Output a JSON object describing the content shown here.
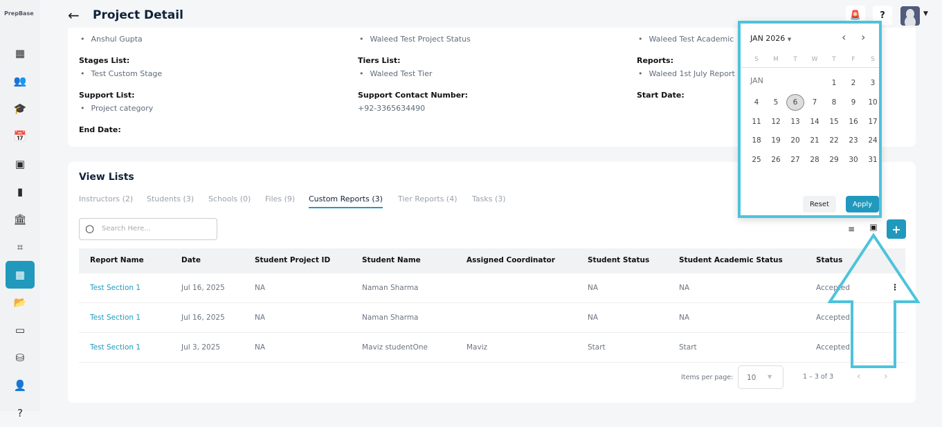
{
  "app": {
    "logo": "PrepBase"
  },
  "header": {
    "title": "Project Detail"
  },
  "sidebar": {
    "icons": [
      "dashboard-icon",
      "users-icon",
      "graduation-cap-icon",
      "calendar-icon",
      "inbox-icon",
      "book-icon",
      "bank-icon",
      "workflow-icon",
      "custom-reports-icon",
      "folder-icon",
      "credit-card-icon",
      "database-settings-icon",
      "user-chat-icon",
      "help-icon"
    ],
    "active_index": 8
  },
  "details": {
    "col1": [
      {
        "type": "value",
        "text": "Anshul Gupta"
      },
      {
        "type": "label",
        "text": "Stages List:"
      },
      {
        "type": "value",
        "text": "Test Custom Stage"
      },
      {
        "type": "label",
        "text": "Support List:"
      },
      {
        "type": "value",
        "text": "Project category"
      },
      {
        "type": "label",
        "text": "End Date:"
      }
    ],
    "col2": [
      {
        "type": "value",
        "text": "Waleed Test Project Status"
      },
      {
        "type": "label",
        "text": "Tiers List:"
      },
      {
        "type": "value",
        "text": "Waleed Test Tier"
      },
      {
        "type": "label",
        "text": "Support Contact Number:"
      },
      {
        "type": "plain",
        "text": "+92-3365634490"
      }
    ],
    "col3": [
      {
        "type": "value",
        "text": "Waleed Test Academic"
      },
      {
        "type": "label",
        "text": "Reports:"
      },
      {
        "type": "value",
        "text": "Waleed 1st July Report"
      },
      {
        "type": "label",
        "text": "Start Date:"
      }
    ]
  },
  "lists": {
    "title": "View Lists",
    "tabs": [
      "Instructors (2)",
      "Students (3)",
      "Schools (0)",
      "Files (9)",
      "Custom Reports (3)",
      "Tier Reports (4)",
      "Tasks (3)"
    ],
    "active_tab": 4,
    "search_placeholder": "Search Here...",
    "columns": [
      "Report Name",
      "Date",
      "Student Project ID",
      "Student Name",
      "Assigned Coordinator",
      "Student Status",
      "Student Academic Status",
      "Status"
    ],
    "rows": [
      [
        "Test Section 1",
        "Jul 16, 2025",
        "NA",
        "Naman Sharma",
        "",
        "NA",
        "NA",
        "Accepted"
      ],
      [
        "Test Section 1",
        "Jul 16, 2025",
        "NA",
        "Naman Sharma",
        "",
        "NA",
        "NA",
        "Accepted"
      ],
      [
        "Test Section 1",
        "Jul 3, 2025",
        "NA",
        "Maviz studentOne",
        "Maviz",
        "Start",
        "Start",
        "Accepted"
      ]
    ],
    "pagination": {
      "items_label": "Items per page:",
      "per_page": "10",
      "range": "1 – 3 of 3"
    }
  },
  "calendar": {
    "month_label": "JAN 2026",
    "weekdays": [
      "S",
      "M",
      "T",
      "W",
      "T",
      "F",
      "S"
    ],
    "row_label": "JAN",
    "first_weekday": 4,
    "days": 31,
    "selected": 6,
    "reset": "Reset",
    "apply": "Apply"
  },
  "colors": {
    "accent": "#2099bd",
    "highlight": "#4dc3dc"
  }
}
